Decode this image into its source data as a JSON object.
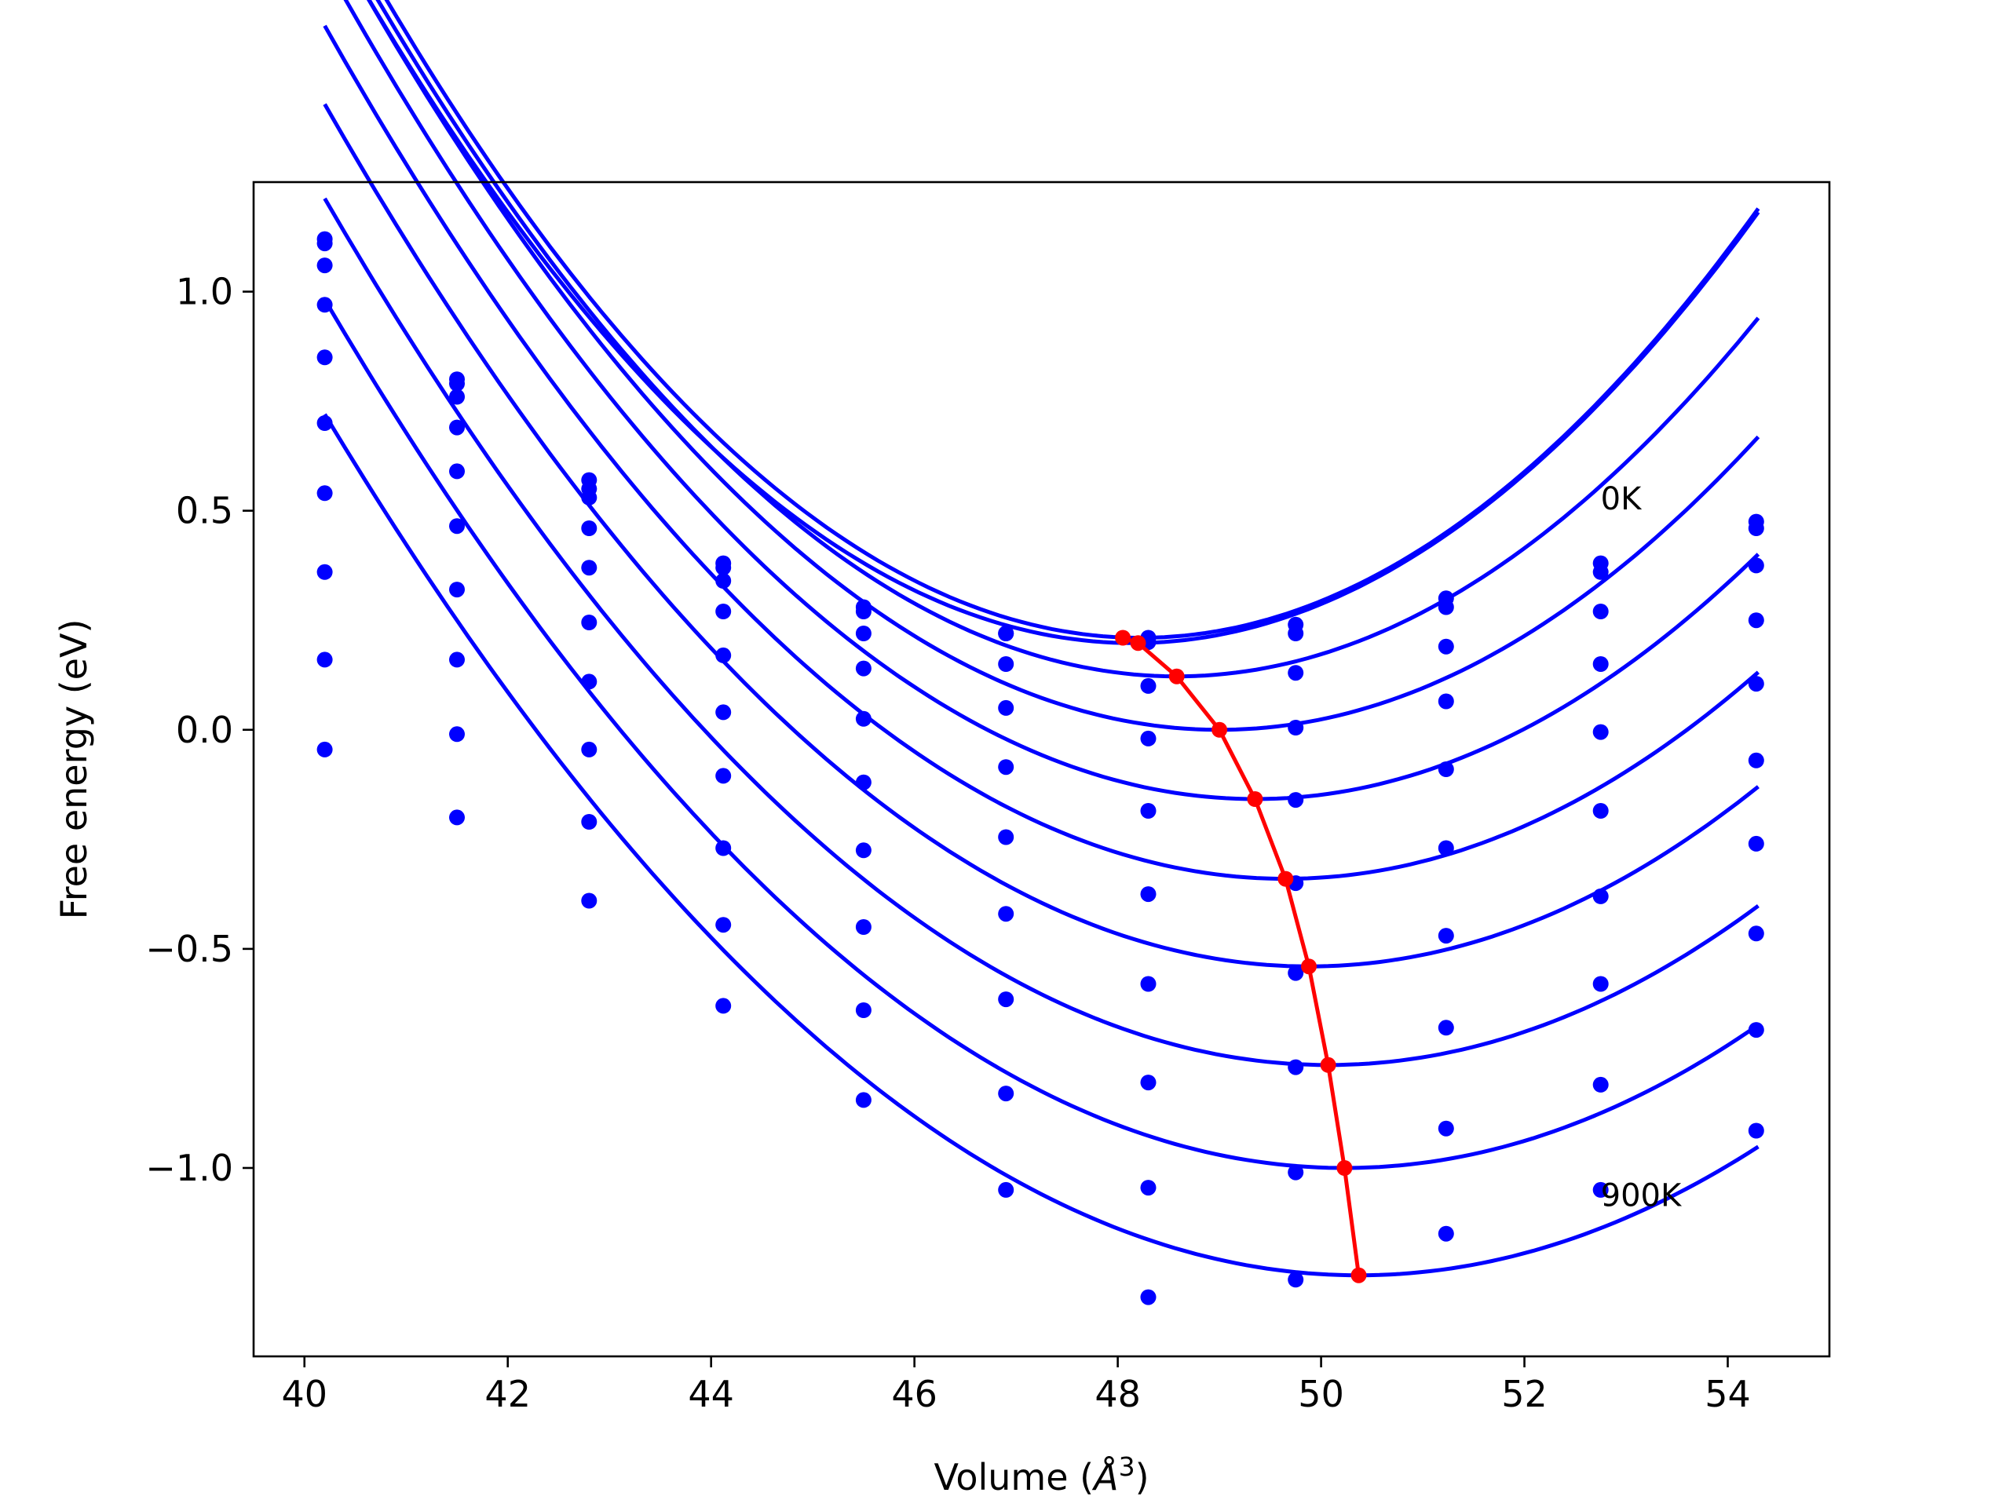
{
  "chart_data": {
    "type": "scatter",
    "title": "",
    "xlabel": "Volume (",
    "xlabel_unit": "Å",
    "xlabel_exp": "3",
    "xlabel_close": ")",
    "ylabel": "Free energy (eV)",
    "xlim": [
      39.5,
      55.0
    ],
    "ylim": [
      -1.43,
      1.25
    ],
    "xticks": [
      40,
      42,
      44,
      46,
      48,
      50,
      52,
      54
    ],
    "xtick_labels": [
      "40",
      "42",
      "44",
      "46",
      "48",
      "50",
      "52",
      "54"
    ],
    "yticks": [
      1.0,
      0.5,
      0.0,
      -0.5,
      -1.0
    ],
    "ytick_labels": [
      "1.0",
      "0.5",
      "0.0",
      "−0.5",
      "−1.0"
    ],
    "grid": false,
    "legend": "none",
    "colors": {
      "points": "#0000ff",
      "fit": "#0000ff",
      "minimum": "#ff0000"
    },
    "annotations": [
      {
        "text": "0K",
        "x": 52.75,
        "y": 0.53
      },
      {
        "text": "900K",
        "x": 52.75,
        "y": -1.06
      }
    ],
    "x": [
      40.2,
      41.5,
      42.8,
      44.12,
      45.5,
      46.9,
      48.3,
      49.75,
      51.23,
      52.75,
      54.28
    ],
    "series": [
      {
        "values": [
          1.12,
          0.8,
          0.57,
          0.38,
          0.28,
          0.22,
          0.21,
          0.24,
          0.3,
          0.38,
          0.475
        ],
        "fit": {
          "a": 0.0265,
          "v0": 48.22,
          "e0": 0.21,
          "xmin": 40.2,
          "xmax": 54.3
        }
      },
      {
        "values": [
          1.11,
          0.79,
          0.55,
          0.37,
          0.27,
          0.22,
          0.2,
          0.22,
          0.28,
          0.36,
          0.46
        ],
        "fit": {
          "a": 0.026,
          "v0": 48.15,
          "e0": 0.198,
          "xmin": 40.2,
          "xmax": 54.3
        }
      },
      {
        "values": [
          1.06,
          0.76,
          0.53,
          0.34,
          0.22,
          0.15,
          0.1,
          0.13,
          0.19,
          0.27,
          0.375
        ],
        "fit": {
          "a": 0.025,
          "v0": 48.58,
          "e0": 0.122,
          "xmin": 40.2,
          "xmax": 54.3
        }
      },
      {
        "values": [
          0.97,
          0.69,
          0.46,
          0.27,
          0.14,
          0.05,
          -0.02,
          0.005,
          0.065,
          0.15,
          0.25
        ],
        "fit": {
          "a": 0.0238,
          "v0": 49.0,
          "e0": 0.0,
          "xmin": 40.2,
          "xmax": 54.3
        }
      },
      {
        "values": [
          0.85,
          0.59,
          0.37,
          0.17,
          0.025,
          -0.085,
          -0.185,
          -0.16,
          -0.09,
          -0.005,
          0.105
        ],
        "fit": {
          "a": 0.0228,
          "v0": 49.35,
          "e0": -0.158,
          "xmin": 40.2,
          "xmax": 54.3
        }
      },
      {
        "values": [
          0.7,
          0.465,
          0.245,
          0.04,
          -0.12,
          -0.245,
          -0.375,
          -0.35,
          -0.27,
          -0.185,
          -0.07
        ],
        "fit": {
          "a": 0.0218,
          "v0": 49.65,
          "e0": -0.34,
          "xmin": 40.2,
          "xmax": 54.3
        }
      },
      {
        "values": [
          0.54,
          0.32,
          0.11,
          -0.105,
          -0.275,
          -0.42,
          -0.58,
          -0.555,
          -0.47,
          -0.38,
          -0.26
        ],
        "fit": {
          "a": 0.021,
          "v0": 49.88,
          "e0": -0.54,
          "xmin": 40.2,
          "xmax": 54.3
        }
      },
      {
        "values": [
          0.36,
          0.16,
          -0.045,
          -0.27,
          -0.45,
          -0.615,
          -0.805,
          -0.77,
          -0.68,
          -0.58,
          -0.465
        ],
        "fit": {
          "a": 0.0203,
          "v0": 50.07,
          "e0": -0.765,
          "xmin": 40.2,
          "xmax": 54.3
        }
      },
      {
        "values": [
          0.16,
          -0.01,
          -0.21,
          -0.445,
          -0.64,
          -0.83,
          -1.045,
          -1.01,
          -0.91,
          -0.81,
          -0.685
        ],
        "fit": {
          "a": 0.0197,
          "v0": 50.23,
          "e0": -1.0,
          "xmin": 40.2,
          "xmax": 54.3
        }
      },
      {
        "values": [
          -0.045,
          -0.2,
          -0.39,
          -0.63,
          -0.845,
          -1.05,
          -1.295,
          -1.255,
          -1.15,
          -1.05,
          -0.915
        ],
        "fit": {
          "a": 0.019,
          "v0": 50.37,
          "e0": -1.245,
          "xmin": 40.2,
          "xmax": 54.3
        }
      }
    ],
    "minimum_path": {
      "x": [
        48.05,
        48.2,
        48.58,
        49.0,
        49.35,
        49.65,
        49.88,
        50.07,
        50.23,
        50.37
      ],
      "y": [
        0.21,
        0.198,
        0.122,
        0.0,
        -0.158,
        -0.34,
        -0.54,
        -0.765,
        -1.0,
        -1.245
      ]
    }
  }
}
